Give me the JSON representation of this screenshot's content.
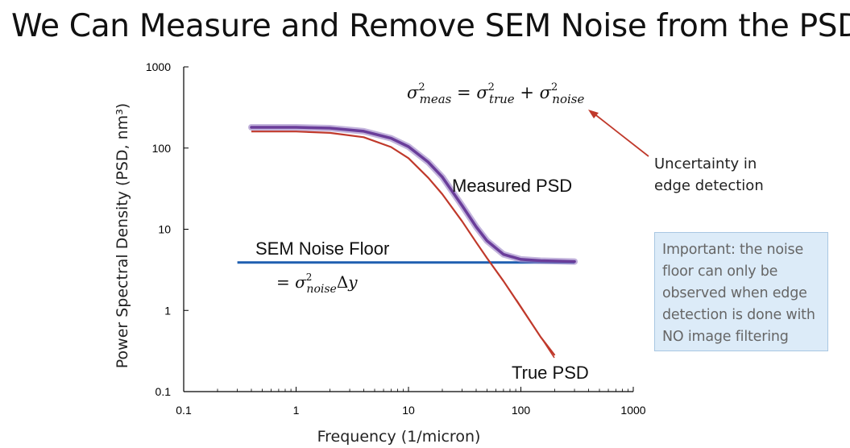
{
  "slide": {
    "title": "We Can Measure and Remove SEM Noise from the PSD"
  },
  "callout": {
    "lines": [
      "Uncertainty in",
      "edge detection"
    ]
  },
  "note": {
    "lines": [
      "Important:  the noise",
      "floor can only be",
      "observed when edge",
      "detection is done with",
      "NO image filtering"
    ]
  },
  "colors": {
    "measured": "#6a3d9a",
    "measured_halo": "#9a80c4",
    "true": "#c0392b",
    "noise_floor": "#1f5fb0",
    "arrow": "#c0392b",
    "axis": "#000000"
  },
  "chart_data": {
    "type": "line",
    "x_scale": "log",
    "y_scale": "log",
    "xlim": [
      0.1,
      1000
    ],
    "ylim": [
      0.1,
      1000
    ],
    "xlabel": "Frequency (1/micron)",
    "ylabel": "Power Spectral Density (PSD, nm³)",
    "x_ticks": [
      "0.1",
      "1",
      "10",
      "100",
      "1000"
    ],
    "y_ticks": [
      "0.1",
      "1",
      "10",
      "100",
      "1000"
    ],
    "grid": false,
    "series": [
      {
        "name": "Measured PSD",
        "key": "measured",
        "x": [
          0.4,
          1,
          2,
          4,
          7,
          10,
          15,
          20,
          30,
          40,
          50,
          70,
          100,
          150,
          300
        ],
        "y": [
          180,
          180,
          176,
          161,
          132,
          104,
          67,
          44,
          19.5,
          10.7,
          7.2,
          4.9,
          4.25,
          4.1,
          4.0
        ]
      },
      {
        "name": "True PSD",
        "key": "true",
        "x": [
          0.4,
          1,
          2,
          4,
          7,
          10,
          15,
          20,
          30,
          40,
          50,
          70,
          100,
          150,
          200
        ],
        "y": [
          160,
          160,
          154,
          136,
          103,
          75,
          43,
          27,
          12.5,
          6.9,
          4.4,
          2.3,
          1.1,
          0.47,
          0.28
        ]
      },
      {
        "name": "SEM Noise Floor",
        "key": "noise_floor",
        "x": [
          0.3,
          300
        ],
        "y": [
          3.9,
          3.9
        ]
      }
    ],
    "annotations": {
      "measured_label": "Measured PSD",
      "true_label": "True PSD",
      "noise_label": "SEM Noise Floor",
      "noise_formula": "= σ²noiseΔy",
      "variance_formula": "σ²meas = σ²true + σ²noise"
    }
  }
}
